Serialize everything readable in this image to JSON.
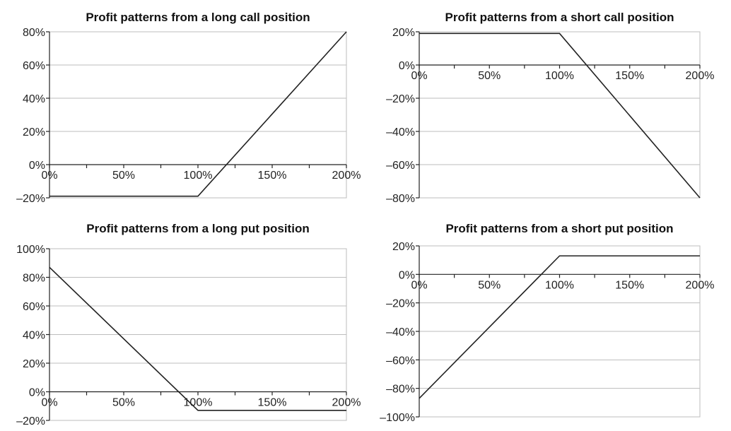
{
  "chart_data": [
    {
      "type": "line",
      "title": "Profit patterns from a long call position",
      "xlabel": "",
      "ylabel": "",
      "xlim": [
        0,
        200
      ],
      "ylim": [
        -20,
        80
      ],
      "x_ticks": [
        "0%",
        "50%",
        "100%",
        "150%",
        "200%"
      ],
      "y_ticks": [
        "80%",
        "60%",
        "40%",
        "20%",
        "0%",
        "–20%"
      ],
      "y_tick_values": [
        80,
        60,
        40,
        20,
        0,
        -20
      ],
      "grid": true,
      "series": [
        {
          "x": [
            0,
            100,
            200
          ],
          "y": [
            -19,
            -19,
            80
          ]
        }
      ]
    },
    {
      "type": "line",
      "title": "Profit patterns from a short call position",
      "xlabel": "",
      "ylabel": "",
      "xlim": [
        0,
        200
      ],
      "ylim": [
        -80,
        20
      ],
      "x_ticks": [
        "0%",
        "50%",
        "100%",
        "150%",
        "200%"
      ],
      "y_ticks": [
        "20%",
        "0%",
        "–20%",
        "–40%",
        "–60%",
        "–80%"
      ],
      "y_tick_values": [
        20,
        0,
        -20,
        -40,
        -60,
        -80
      ],
      "grid": true,
      "series": [
        {
          "x": [
            0,
            100,
            200
          ],
          "y": [
            19,
            19,
            -80
          ]
        }
      ]
    },
    {
      "type": "line",
      "title": "Profit patterns from a long put position",
      "xlabel": "",
      "ylabel": "",
      "xlim": [
        0,
        200
      ],
      "ylim": [
        -20,
        100
      ],
      "x_ticks": [
        "0%",
        "50%",
        "100%",
        "150%",
        "200%"
      ],
      "y_ticks": [
        "100%",
        "80%",
        "60%",
        "40%",
        "20%",
        "0%",
        "–20%"
      ],
      "y_tick_values": [
        100,
        80,
        60,
        40,
        20,
        0,
        -20
      ],
      "grid": true,
      "series": [
        {
          "x": [
            0,
            100,
            200
          ],
          "y": [
            87,
            -13,
            -13
          ]
        }
      ]
    },
    {
      "type": "line",
      "title": "Profit patterns from a short put position",
      "xlabel": "",
      "ylabel": "",
      "xlim": [
        0,
        200
      ],
      "ylim": [
        -100,
        20
      ],
      "x_ticks": [
        "0%",
        "50%",
        "100%",
        "150%",
        "200%"
      ],
      "y_ticks": [
        "20%",
        "0%",
        "–20%",
        "–40%",
        "–60%",
        "–80%",
        "–100%"
      ],
      "y_tick_values": [
        20,
        0,
        -20,
        -40,
        -60,
        -80,
        -100
      ],
      "grid": true,
      "series": [
        {
          "x": [
            0,
            100,
            200
          ],
          "y": [
            -87,
            13,
            13
          ]
        }
      ]
    }
  ]
}
